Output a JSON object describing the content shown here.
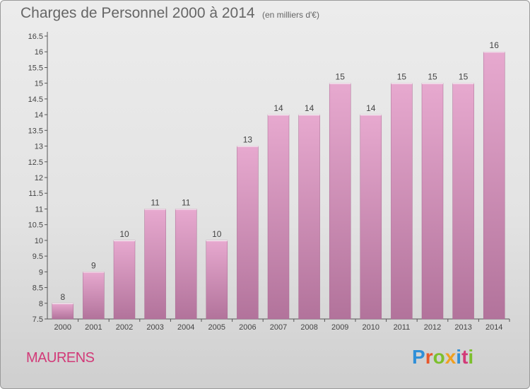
{
  "header": {
    "title": "Charges de Personnel 2000 à 2014",
    "subtitle": "(en milliers d'€)"
  },
  "footer": {
    "commune": "MAURENS",
    "logo_letters": [
      {
        "ch": "P",
        "color": "#2f8fd8"
      },
      {
        "ch": "r",
        "color": "#e8562a"
      },
      {
        "ch": "o",
        "color": "#7cbf2c"
      },
      {
        "ch": "x",
        "color": "#f0a020"
      },
      {
        "ch": "i",
        "color": "#2f8fd8"
      },
      {
        "ch": "t",
        "color": "#d23a78"
      },
      {
        "ch": "i",
        "color": "#7cbf2c"
      }
    ]
  },
  "colors": {
    "bar_top": "#e7a9cf",
    "bar_bottom": "#b2739b",
    "axis": "#555555",
    "text": "#444444"
  },
  "chart_data": {
    "type": "bar",
    "title": "Charges de Personnel 2000 à 2014",
    "subtitle": "(en milliers d'€)",
    "categories": [
      "2000",
      "2001",
      "2002",
      "2003",
      "2004",
      "2005",
      "2006",
      "2007",
      "2008",
      "2009",
      "2010",
      "2011",
      "2012",
      "2013",
      "2014"
    ],
    "values": [
      8,
      9,
      10,
      11,
      11,
      10,
      13,
      14,
      14,
      15,
      14,
      15,
      15,
      15,
      16
    ],
    "labels": [
      "8",
      "9",
      "10",
      "11",
      "11",
      "10",
      "13",
      "14",
      "14",
      "15",
      "14",
      "15",
      "15",
      "15",
      "16"
    ],
    "ylim": [
      7.5,
      16.5
    ],
    "yticks": [
      7.5,
      8,
      8.5,
      9,
      9.5,
      10,
      10.5,
      11,
      11.5,
      12,
      12.5,
      13,
      13.5,
      14,
      14.5,
      15,
      15.5,
      16,
      16.5
    ],
    "ytick_labels": [
      "7.5",
      "8",
      "8.5",
      "9",
      "9.5",
      "10",
      "10.5",
      "11",
      "11.5",
      "12",
      "12.5",
      "13",
      "13.5",
      "14",
      "14.5",
      "15",
      "15.5",
      "16",
      "16.5"
    ],
    "grid": false,
    "legend": "none"
  }
}
